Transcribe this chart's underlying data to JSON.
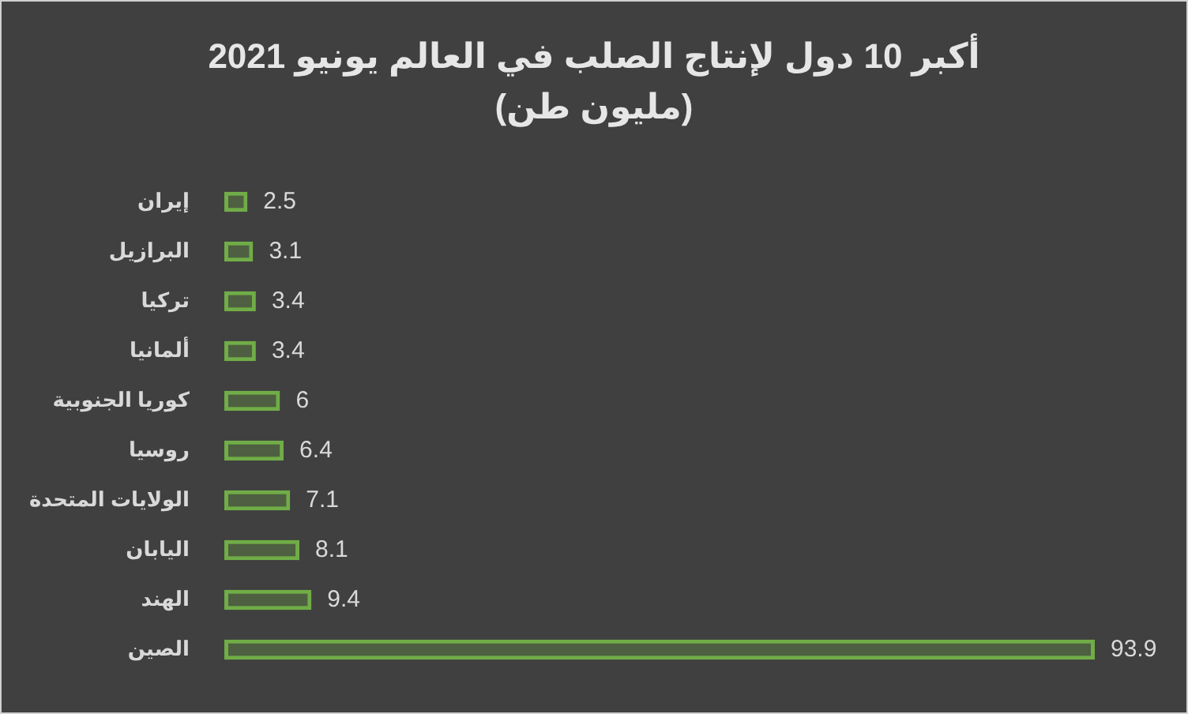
{
  "chart_data": {
    "type": "bar",
    "orientation": "horizontal",
    "title": "أكبر 10 دول لإنتاج الصلب في العالم يونيو 2021",
    "subtitle": "(مليون طن)",
    "categories": [
      "إيران",
      "البرازيل",
      "تركيا",
      "ألمانيا",
      "كوريا الجنوبية",
      "روسيا",
      "الولايات المتحدة",
      "اليابان",
      "الهند",
      "الصين"
    ],
    "values": [
      2.5,
      3.1,
      3.4,
      3.4,
      6,
      6.4,
      7.1,
      8.1,
      9.4,
      93.9
    ],
    "color": "#70ad47",
    "data_labels": true
  }
}
